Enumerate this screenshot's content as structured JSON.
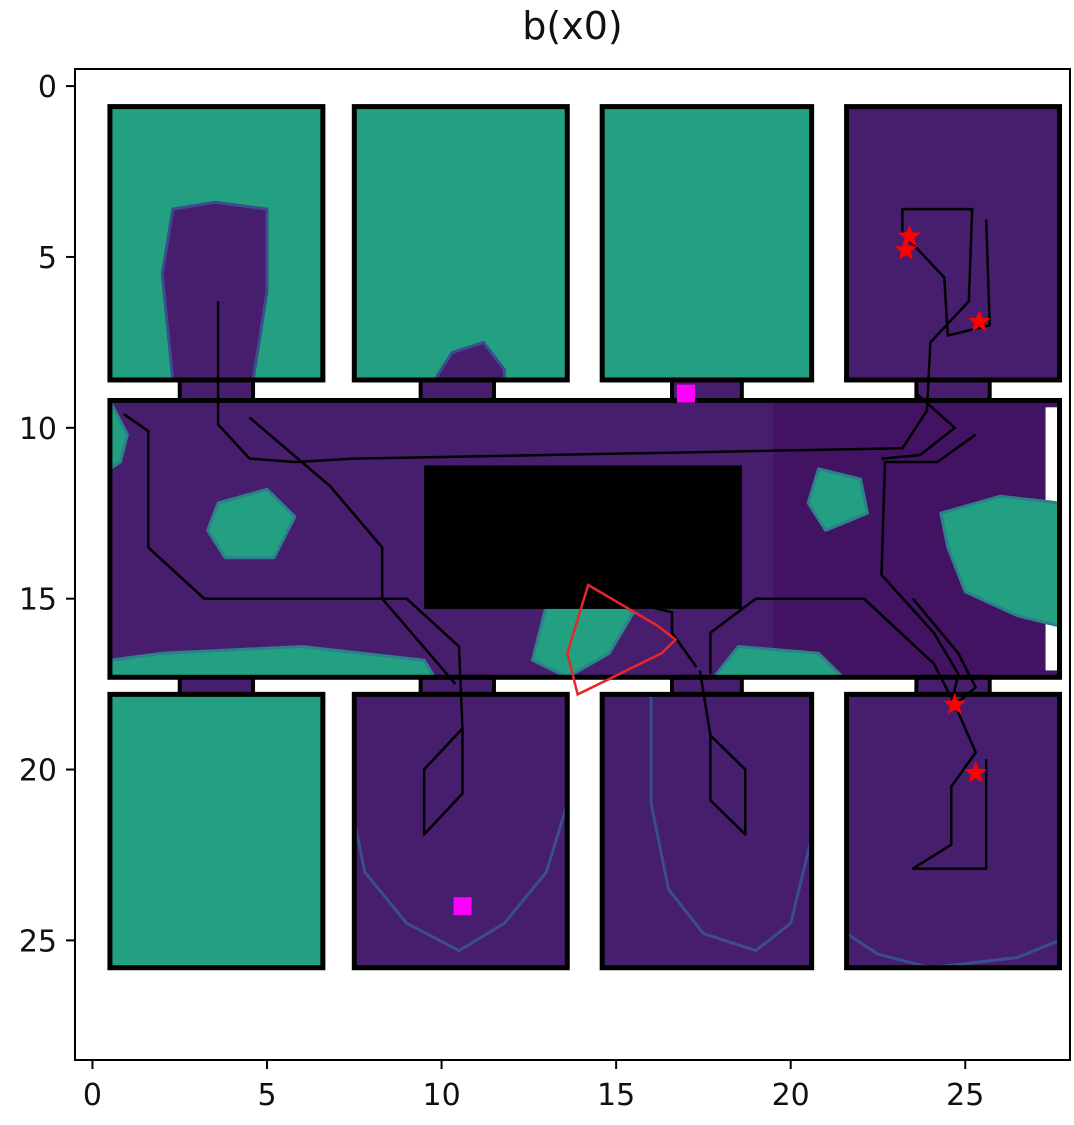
{
  "title": "b(x0)",
  "colors": {
    "free": "#23a082",
    "visited": "#471d6e",
    "visited_dark": "#3e0e5a",
    "wall": "#000000",
    "path": "#000000",
    "star": "#ff0000",
    "goal": "#ff00ff",
    "fov": "#e8262a",
    "gap": "#ffffff"
  },
  "chart_data": {
    "type": "heatmap",
    "title": "b(x0)",
    "xlim": [
      -0.5,
      28
    ],
    "ylim": [
      28.5,
      -0.5
    ],
    "x_ticks": [
      0,
      5,
      10,
      15,
      20,
      25
    ],
    "y_ticks": [
      0,
      5,
      10,
      15,
      20,
      25
    ],
    "grid": false,
    "rooms": [
      {
        "name": "room-top-1",
        "x0": 0.5,
        "y0": 0.6,
        "x1": 6.6,
        "y1": 8.6,
        "fill": "free"
      },
      {
        "name": "room-top-2",
        "x0": 7.5,
        "y0": 0.6,
        "x1": 13.6,
        "y1": 8.6,
        "fill": "free"
      },
      {
        "name": "room-top-3",
        "x0": 14.6,
        "y0": 0.6,
        "x1": 20.6,
        "y1": 8.6,
        "fill": "free"
      },
      {
        "name": "room-top-4",
        "x0": 21.6,
        "y0": 0.6,
        "x1": 27.7,
        "y1": 8.6,
        "fill": "visited"
      },
      {
        "name": "hallway",
        "x0": 0.5,
        "y0": 9.2,
        "x1": 27.7,
        "y1": 17.3,
        "fill": "visited"
      },
      {
        "name": "room-bottom-1",
        "x0": 0.5,
        "y0": 17.8,
        "x1": 6.6,
        "y1": 25.8,
        "fill": "free"
      },
      {
        "name": "room-bottom-2",
        "x0": 7.5,
        "y0": 17.8,
        "x1": 13.6,
        "y1": 25.8,
        "fill": "visited"
      },
      {
        "name": "room-bottom-3",
        "x0": 14.6,
        "y0": 17.8,
        "x1": 20.6,
        "y1": 25.8,
        "fill": "visited"
      },
      {
        "name": "room-bottom-4",
        "x0": 21.6,
        "y0": 17.8,
        "x1": 27.7,
        "y1": 25.8,
        "fill": "visited"
      }
    ],
    "doors": [
      {
        "x0": 2.5,
        "y0": 8.6,
        "x1": 4.6,
        "y1": 9.2
      },
      {
        "x0": 9.4,
        "y0": 8.6,
        "x1": 11.5,
        "y1": 9.2
      },
      {
        "x0": 16.6,
        "y0": 8.6,
        "x1": 18.6,
        "y1": 9.2
      },
      {
        "x0": 23.6,
        "y0": 8.6,
        "x1": 25.7,
        "y1": 9.2
      },
      {
        "x0": 2.5,
        "y0": 17.3,
        "x1": 4.6,
        "y1": 17.8
      },
      {
        "x0": 9.4,
        "y0": 17.3,
        "x1": 11.5,
        "y1": 17.8
      },
      {
        "x0": 16.6,
        "y0": 17.3,
        "x1": 18.6,
        "y1": 17.8
      },
      {
        "x0": 23.6,
        "y0": 17.3,
        "x1": 25.7,
        "y1": 17.8
      }
    ],
    "visited_blobs": [
      {
        "points": [
          [
            2.3,
            8.6
          ],
          [
            2.0,
            5.5
          ],
          [
            2.3,
            3.6
          ],
          [
            3.5,
            3.4
          ],
          [
            5.0,
            3.6
          ],
          [
            5.0,
            6.0
          ],
          [
            4.6,
            8.6
          ]
        ]
      },
      {
        "points": [
          [
            9.8,
            8.6
          ],
          [
            10.3,
            7.8
          ],
          [
            11.2,
            7.5
          ],
          [
            11.8,
            8.3
          ],
          [
            11.8,
            8.6
          ]
        ]
      },
      {
        "points": [
          [
            7.5,
            17.8
          ],
          [
            11.5,
            17.8
          ],
          [
            13.6,
            17.8
          ],
          [
            13.6,
            21.0
          ],
          [
            13.0,
            23.0
          ],
          [
            11.8,
            24.5
          ],
          [
            10.5,
            25.3
          ],
          [
            9.0,
            24.5
          ],
          [
            7.8,
            23.0
          ],
          [
            7.5,
            21.5
          ]
        ]
      },
      {
        "points": [
          [
            16.0,
            17.8
          ],
          [
            20.6,
            17.8
          ],
          [
            20.6,
            22.0
          ],
          [
            20.0,
            24.5
          ],
          [
            19.0,
            25.3
          ],
          [
            17.5,
            24.8
          ],
          [
            16.5,
            23.5
          ],
          [
            16.0,
            21.0
          ]
        ]
      },
      {
        "points": [
          [
            21.6,
            17.8
          ],
          [
            27.7,
            17.8
          ],
          [
            27.7,
            25.0
          ],
          [
            26.5,
            25.5
          ],
          [
            24.0,
            25.8
          ],
          [
            22.5,
            25.4
          ],
          [
            21.6,
            24.8
          ]
        ]
      }
    ],
    "hallway_free_blobs": [
      {
        "points": [
          [
            3.6,
            12.2
          ],
          [
            5.0,
            11.8
          ],
          [
            5.8,
            12.6
          ],
          [
            5.2,
            13.8
          ],
          [
            3.8,
            13.8
          ],
          [
            3.3,
            13.0
          ]
        ]
      },
      {
        "points": [
          [
            0.5,
            9.2
          ],
          [
            1.0,
            10.2
          ],
          [
            0.8,
            11.0
          ],
          [
            0.5,
            11.2
          ]
        ]
      },
      {
        "points": [
          [
            20.8,
            11.2
          ],
          [
            22.0,
            11.5
          ],
          [
            22.2,
            12.5
          ],
          [
            21.0,
            13.0
          ],
          [
            20.5,
            12.2
          ]
        ]
      },
      {
        "points": [
          [
            24.3,
            12.5
          ],
          [
            26.0,
            12.0
          ],
          [
            27.7,
            12.2
          ],
          [
            27.7,
            15.8
          ],
          [
            26.5,
            15.5
          ],
          [
            25.0,
            14.8
          ],
          [
            24.5,
            13.5
          ]
        ]
      },
      {
        "points": [
          [
            2.0,
            16.6
          ],
          [
            6.0,
            16.4
          ],
          [
            9.5,
            16.8
          ],
          [
            9.8,
            17.3
          ],
          [
            0.5,
            17.3
          ],
          [
            0.5,
            16.8
          ]
        ]
      },
      {
        "points": [
          [
            13.0,
            15.2
          ],
          [
            14.5,
            14.8
          ],
          [
            15.5,
            15.4
          ],
          [
            14.8,
            16.6
          ],
          [
            13.6,
            17.3
          ],
          [
            12.6,
            16.8
          ]
        ]
      },
      {
        "points": [
          [
            18.5,
            16.4
          ],
          [
            20.8,
            16.6
          ],
          [
            21.5,
            17.3
          ],
          [
            17.8,
            17.3
          ]
        ]
      }
    ],
    "occluder": {
      "x0": 9.5,
      "y0": 11.1,
      "x1": 18.6,
      "y1": 15.3
    },
    "trajectories": [
      [
        [
          3.6,
          6.3
        ],
        [
          3.6,
          9.9
        ],
        [
          4.5,
          10.9
        ],
        [
          5.8,
          11.0
        ],
        [
          7.5,
          10.9
        ],
        [
          18.0,
          10.7
        ],
        [
          23.2,
          10.6
        ],
        [
          23.9,
          9.5
        ],
        [
          24.0,
          7.5
        ],
        [
          25.1,
          6.3
        ],
        [
          25.2,
          3.6
        ],
        [
          23.2,
          3.6
        ],
        [
          23.2,
          4.3
        ],
        [
          24.4,
          5.6
        ],
        [
          24.5,
          7.3
        ],
        [
          25.7,
          7.0
        ],
        [
          25.6,
          3.9
        ]
      ],
      [
        [
          0.9,
          9.6
        ],
        [
          1.6,
          10.1
        ],
        [
          1.6,
          13.5
        ],
        [
          3.2,
          15.0
        ],
        [
          9.0,
          15.0
        ],
        [
          10.5,
          16.4
        ],
        [
          10.6,
          18.8
        ],
        [
          9.5,
          20.0
        ],
        [
          9.5,
          21.9
        ],
        [
          10.6,
          20.7
        ],
        [
          10.6,
          18.8
        ]
      ],
      [
        [
          4.5,
          9.7
        ],
        [
          6.8,
          11.7
        ],
        [
          8.3,
          13.5
        ],
        [
          8.3,
          15.0
        ],
        [
          10.4,
          17.5
        ]
      ],
      [
        [
          22.6,
          10.9
        ],
        [
          23.7,
          10.8
        ],
        [
          24.7,
          10.0
        ],
        [
          23.6,
          9.0
        ]
      ],
      [
        [
          25.3,
          10.2
        ],
        [
          24.2,
          11.0
        ],
        [
          22.7,
          11.0
        ],
        [
          22.6,
          14.3
        ],
        [
          24.1,
          16.0
        ],
        [
          24.8,
          17.2
        ],
        [
          24.6,
          18.1
        ]
      ],
      [
        [
          17.4,
          17.1
        ],
        [
          17.7,
          19.0
        ],
        [
          18.7,
          20.0
        ],
        [
          18.7,
          21.9
        ],
        [
          17.7,
          20.9
        ],
        [
          17.7,
          19.0
        ]
      ],
      [
        [
          23.5,
          15.0
        ],
        [
          24.8,
          16.6
        ],
        [
          25.3,
          17.6
        ],
        [
          24.7,
          18.1
        ],
        [
          25.3,
          19.5
        ],
        [
          24.6,
          20.5
        ],
        [
          24.6,
          22.2
        ],
        [
          23.5,
          22.9
        ],
        [
          25.6,
          22.9
        ],
        [
          25.6,
          19.7
        ]
      ],
      [
        [
          15.0,
          15.0
        ],
        [
          16.6,
          15.4
        ],
        [
          16.6,
          16.0
        ],
        [
          17.3,
          17.0
        ]
      ],
      [
        [
          17.7,
          17.2
        ],
        [
          17.7,
          16.0
        ],
        [
          19.0,
          15.0
        ],
        [
          22.1,
          15.0
        ],
        [
          24.1,
          16.9
        ],
        [
          24.6,
          17.9
        ]
      ]
    ],
    "stars": [
      [
        23.4,
        4.4
      ],
      [
        23.3,
        4.8
      ],
      [
        25.4,
        6.9
      ],
      [
        24.7,
        18.1
      ],
      [
        25.3,
        20.1
      ]
    ],
    "goals": [
      [
        10.6,
        24.0
      ],
      [
        17.0,
        9.0
      ]
    ],
    "fov_wedge": [
      [
        16.7,
        16.2
      ],
      [
        16.2,
        15.8
      ],
      [
        14.2,
        14.6
      ],
      [
        13.6,
        16.6
      ],
      [
        13.9,
        17.8
      ],
      [
        16.3,
        16.6
      ]
    ]
  }
}
